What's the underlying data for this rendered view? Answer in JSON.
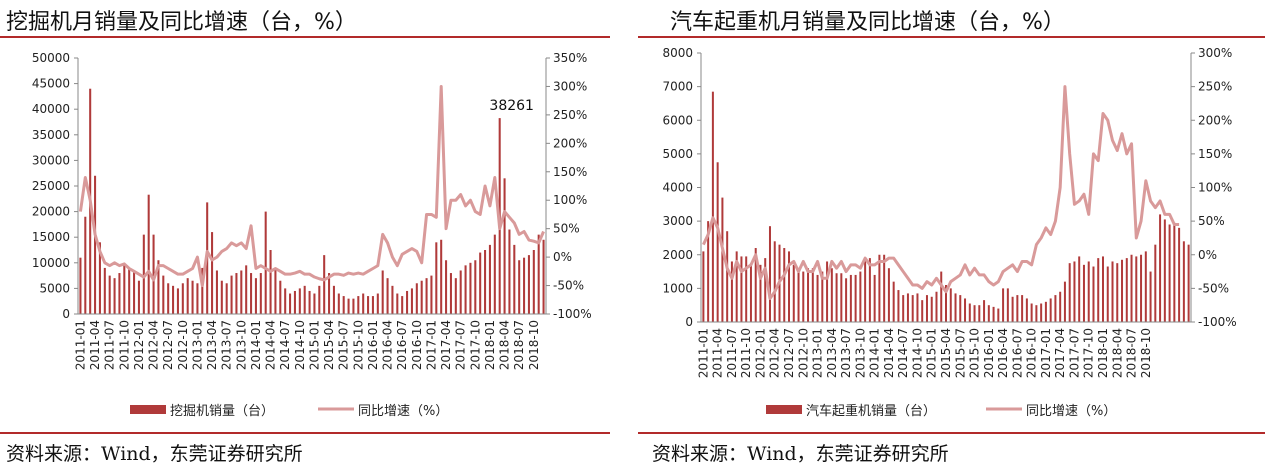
{
  "colors": {
    "rule": "#b22a2a",
    "bar": "#b03a3a",
    "line": "#d99a9a"
  },
  "chart_data": [
    {
      "type": "bar+line",
      "title": "挖掘机月销量及同比增速（台，%）",
      "source": "资料来源：Wind，东莞证券研究所",
      "y_left": {
        "min": 0,
        "max": 50000,
        "ticks": [
          "0",
          "5000",
          "10000",
          "15000",
          "20000",
          "25000",
          "30000",
          "35000",
          "40000",
          "45000",
          "50000"
        ]
      },
      "y_right": {
        "min": -100,
        "max": 350,
        "ticks": [
          "-100%",
          "-50%",
          "0%",
          "50%",
          "100%",
          "150%",
          "200%",
          "250%",
          "300%",
          "350%"
        ]
      },
      "x_start": "2011-01",
      "x_tick_labels": [
        "2011-01",
        "2011-04",
        "2011-07",
        "2011-10",
        "2012-01",
        "2012-04",
        "2012-07",
        "2012-10",
        "2013-01",
        "2013-04",
        "2013-07",
        "2013-10",
        "2014-01",
        "2014-04",
        "2014-07",
        "2014-10",
        "2015-01",
        "2015-04",
        "2015-07",
        "2015-10",
        "2016-01",
        "2016-04",
        "2016-07",
        "2016-10",
        "2017-01",
        "2017-04",
        "2017-07",
        "2017-10",
        "2018-01",
        "2018-04",
        "2018-07",
        "2018-10"
      ],
      "annotation": {
        "text": "38261",
        "month": "2018-03"
      },
      "legend": [
        "挖掘机销量（台）",
        "同比增速（%）"
      ],
      "series": [
        {
          "name": "挖掘机销量（台）",
          "type": "bar",
          "values": [
            11000,
            19000,
            44000,
            27000,
            14000,
            9000,
            7500,
            7000,
            8000,
            9500,
            9000,
            8500,
            6500,
            15500,
            23300,
            15500,
            10500,
            7500,
            6000,
            5500,
            5000,
            6000,
            7000,
            6500,
            6000,
            9000,
            21800,
            16000,
            8500,
            6500,
            6000,
            7500,
            8000,
            8500,
            9500,
            8000,
            7000,
            8000,
            20000,
            12500,
            8500,
            6500,
            5000,
            4000,
            4500,
            5000,
            5500,
            4500,
            4000,
            5500,
            11500,
            8000,
            5500,
            4000,
            3500,
            3000,
            3000,
            3500,
            4000,
            3500,
            3500,
            4000,
            8500,
            7000,
            5500,
            4000,
            3500,
            4500,
            5000,
            6000,
            6500,
            7000,
            7500,
            14000,
            14500,
            10500,
            8000,
            7000,
            8500,
            9500,
            10000,
            10500,
            12000,
            12500,
            13500,
            15500,
            38261,
            26500,
            16500,
            13500,
            10500,
            11000,
            11500,
            12500,
            15500,
            14500
          ]
        },
        {
          "name": "同比增速（%）",
          "type": "line",
          "values": [
            80,
            140,
            100,
            40,
            10,
            -10,
            -15,
            -10,
            -15,
            -12,
            -20,
            -25,
            -30,
            -35,
            -25,
            -40,
            -15,
            -15,
            -20,
            -25,
            -30,
            -30,
            -25,
            -20,
            0,
            -50,
            10,
            -5,
            0,
            10,
            15,
            25,
            20,
            25,
            15,
            55,
            -20,
            -15,
            -20,
            -25,
            -20,
            -25,
            -30,
            -30,
            -28,
            -25,
            -30,
            -30,
            -35,
            -38,
            -40,
            -35,
            -30,
            -30,
            -32,
            -28,
            -30,
            -28,
            -30,
            -25,
            -20,
            -15,
            40,
            25,
            0,
            -15,
            5,
            10,
            15,
            10,
            -10,
            75,
            75,
            70,
            300,
            50,
            100,
            100,
            110,
            90,
            100,
            80,
            75,
            125,
            90,
            140,
            50,
            80,
            70,
            60,
            40,
            45,
            30,
            28,
            25,
            45
          ]
        }
      ]
    },
    {
      "type": "bar+line",
      "title": "汽车起重机月销量及同比增速（台，%）",
      "source": "资料来源：Wind，东莞证券研究所",
      "y_left": {
        "min": 0,
        "max": 8000,
        "ticks": [
          "0",
          "1000",
          "2000",
          "3000",
          "4000",
          "5000",
          "6000",
          "7000",
          "8000"
        ]
      },
      "y_right": {
        "min": -100,
        "max": 300,
        "ticks": [
          "-100%",
          "-50%",
          "0%",
          "50%",
          "100%",
          "150%",
          "200%",
          "250%",
          "300%"
        ]
      },
      "x_start": "2011-01",
      "x_tick_labels": [
        "2011-01",
        "2011-04",
        "2011-07",
        "2011-10",
        "2012-01",
        "2012-04",
        "2012-07",
        "2012-10",
        "2013-01",
        "2013-04",
        "2013-07",
        "2013-10",
        "2014-01",
        "2014-04",
        "2014-07",
        "2014-10",
        "2015-01",
        "2015-04",
        "2015-07",
        "2015-10",
        "2016-01",
        "2016-04",
        "2016-07",
        "2016-10",
        "2017-01",
        "2017-04",
        "2017-07",
        "2017-10",
        "2018-01",
        "2018-04",
        "2018-07",
        "2018-10"
      ],
      "legend": [
        "汽车起重机销量（台）",
        "同比增速（%）"
      ],
      "series": [
        {
          "name": "汽车起重机销量（台）",
          "type": "bar",
          "values": [
            2100,
            3000,
            6850,
            4750,
            3700,
            2700,
            1800,
            2100,
            1950,
            1950,
            1750,
            2200,
            1700,
            1900,
            2850,
            2400,
            2300,
            2200,
            2100,
            1700,
            1600,
            1500,
            1600,
            1600,
            1400,
            1500,
            1800,
            1600,
            1450,
            1450,
            1300,
            1400,
            1400,
            1500,
            1800,
            1900,
            1400,
            2000,
            2000,
            1600,
            1200,
            950,
            800,
            850,
            800,
            850,
            650,
            800,
            750,
            900,
            1500,
            1100,
            1000,
            850,
            800,
            700,
            550,
            500,
            500,
            650,
            500,
            450,
            400,
            1000,
            1000,
            750,
            800,
            800,
            700,
            550,
            500,
            550,
            600,
            700,
            800,
            900,
            1200,
            1750,
            1800,
            1950,
            1700,
            1800,
            1650,
            1900,
            1950,
            1650,
            1800,
            1750,
            1850,
            1900,
            2000,
            1950,
            2000,
            2100,
            1500,
            2300,
            3200,
            3050,
            2900,
            2950,
            2800,
            2400,
            2300
          ]
        },
        {
          "name": "同比增速（%）",
          "type": "line",
          "values": [
            15,
            30,
            55,
            40,
            10,
            -20,
            -35,
            -10,
            -25,
            -20,
            -15,
            0,
            -35,
            -20,
            -65,
            -55,
            -40,
            -30,
            -15,
            -10,
            -25,
            -10,
            -25,
            -25,
            -10,
            -35,
            -35,
            -10,
            -20,
            -10,
            -25,
            -15,
            -15,
            -20,
            -5,
            -15,
            -15,
            -10,
            -10,
            -5,
            -5,
            -15,
            -25,
            -35,
            -45,
            -45,
            -50,
            -40,
            -45,
            -35,
            -45,
            -55,
            -40,
            -35,
            -30,
            -15,
            -30,
            -20,
            -30,
            -30,
            -40,
            -45,
            -40,
            -25,
            -20,
            -15,
            -25,
            -10,
            -10,
            -15,
            15,
            25,
            40,
            30,
            50,
            100,
            250,
            150,
            75,
            80,
            90,
            60,
            150,
            140,
            210,
            200,
            170,
            155,
            180,
            150,
            165,
            25,
            50,
            110,
            80,
            70,
            80,
            60,
            60,
            45,
            45
          ]
        }
      ]
    }
  ]
}
